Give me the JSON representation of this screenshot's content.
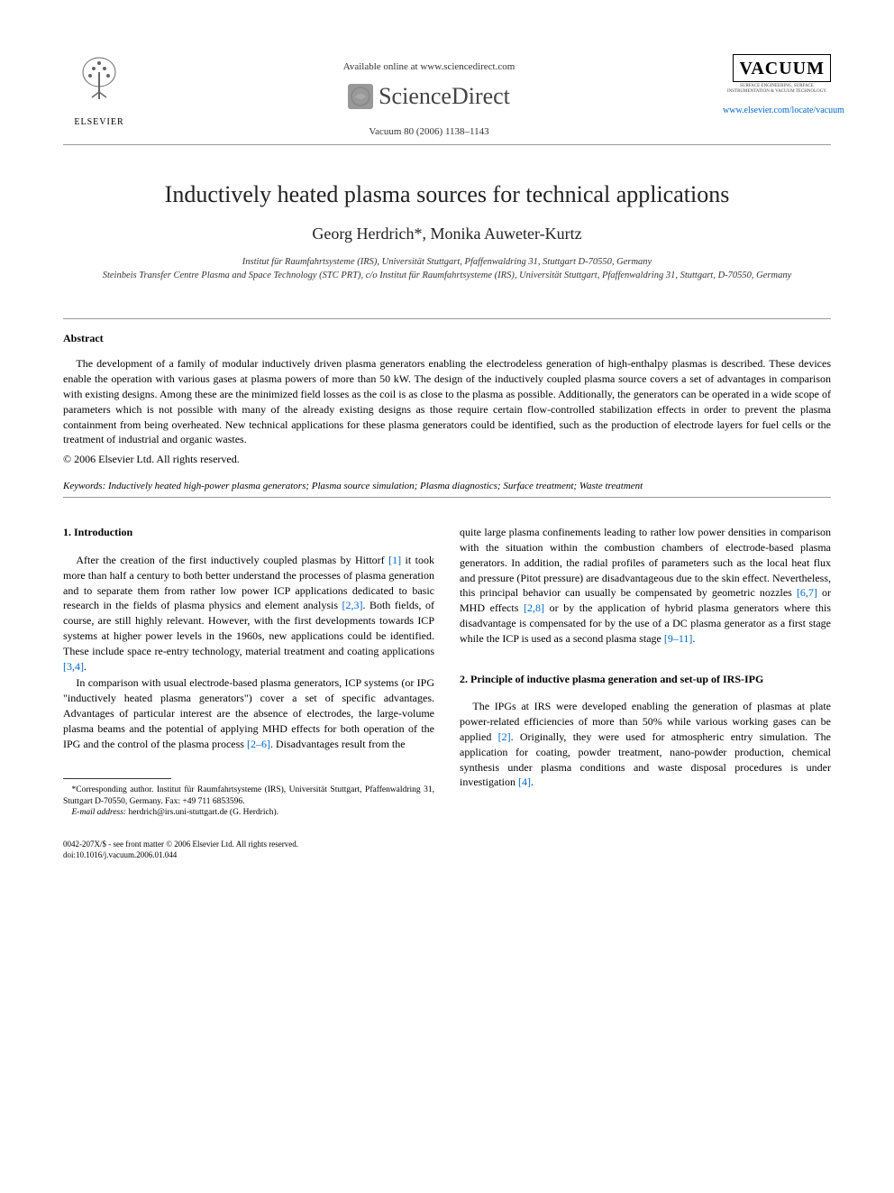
{
  "header": {
    "available_text": "Available online at www.sciencedirect.com",
    "sciencedirect_label": "ScienceDirect",
    "citation": "Vacuum 80 (2006) 1138–1143",
    "elsevier_label": "ELSEVIER",
    "journal_title": "VACUUM",
    "journal_subtitle": "SURFACE ENGINEERING, SURFACE INSTRUMENTATION & VACUUM TECHNOLOGY",
    "journal_link": "www.elsevier.com/locate/vacuum"
  },
  "article": {
    "title": "Inductively heated plasma sources for technical applications",
    "authors": "Georg Herdrich*, Monika Auweter-Kurtz",
    "affiliations": "Institut für Raumfahrtsysteme (IRS), Universität Stuttgart, Pfaffenwaldring 31, Stuttgart D-70550, Germany\nSteinbeis Transfer Centre Plasma and Space Technology (STC PRT), c/o Institut für Raumfahrtsysteme (IRS), Universität Stuttgart, Pfaffenwaldring 31, Stuttgart, D-70550, Germany"
  },
  "abstract": {
    "label": "Abstract",
    "text": "The development of a family of modular inductively driven plasma generators enabling the electrodeless generation of high-enthalpy plasmas is described. These devices enable the operation with various gases at plasma powers of more than 50 kW. The design of the inductively coupled plasma source covers a set of advantages in comparison with existing designs. Among these are the minimized field losses as the coil is as close to the plasma as possible. Additionally, the generators can be operated in a wide scope of parameters which is not possible with many of the already existing designs as those require certain flow-controlled stabilization effects in order to prevent the plasma containment from being overheated. New technical applications for these plasma generators could be identified, such as the production of electrode layers for fuel cells or the treatment of industrial and organic wastes.",
    "copyright": "© 2006 Elsevier Ltd. All rights reserved.",
    "keywords_label": "Keywords:",
    "keywords": "Inductively heated high-power plasma generators; Plasma source simulation; Plasma diagnostics; Surface treatment; Waste treatment"
  },
  "sections": {
    "intro_heading": "1. Introduction",
    "intro_p1_a": "After the creation of the first inductively coupled plasmas by Hittorf ",
    "intro_p1_ref1": "[1]",
    "intro_p1_b": " it took more than half a century to both better understand the processes of plasma generation and to separate them from rather low power ICP applications dedicated to basic research in the fields of plasma physics and element analysis ",
    "intro_p1_ref2": "[2,3]",
    "intro_p1_c": ". Both fields, of course, are still highly relevant. However, with the first developments towards ICP systems at higher power levels in the 1960s, new applications could be identified. These include space re-entry technology, material treatment and coating applications ",
    "intro_p1_ref3": "[3,4]",
    "intro_p1_d": ".",
    "intro_p2_a": "In comparison with usual electrode-based plasma generators, ICP systems (or IPG \"inductively heated plasma generators\") cover a set of specific advantages. Advantages of particular interest are the absence of electrodes, the large-volume plasma beams and the potential of applying MHD effects for both operation of the IPG and the control of the plasma process ",
    "intro_p2_ref1": "[2–6]",
    "intro_p2_b": ". Disadvantages result from the",
    "col2_p1_a": "quite large plasma confinements leading to rather low power densities in comparison with the situation within the combustion chambers of electrode-based plasma generators. In addition, the radial profiles of parameters such as the local heat flux and pressure (Pitot pressure) are disadvantageous due to the skin effect. Nevertheless, this principal behavior can usually be compensated by geometric nozzles ",
    "col2_p1_ref1": "[6,7]",
    "col2_p1_b": " or MHD effects ",
    "col2_p1_ref2": "[2,8]",
    "col2_p1_c": " or by the application of hybrid plasma generators where this disadvantage is compensated for by the use of a DC plasma generator as a first stage while the ICP is used as a second plasma stage ",
    "col2_p1_ref3": "[9–11]",
    "col2_p1_d": ".",
    "sec2_heading": "2. Principle of inductive plasma generation and set-up of IRS-IPG",
    "sec2_p1_a": "The IPGs at IRS were developed enabling the generation of plasmas at plate power-related efficiencies of more than 50% while various working gases can be applied ",
    "sec2_p1_ref1": "[2]",
    "sec2_p1_b": ". Originally, they were used for atmospheric entry simulation. The application for coating, powder treatment, nano-powder production, chemical synthesis under plasma conditions and waste disposal procedures is under investigation ",
    "sec2_p1_ref2": "[4]",
    "sec2_p1_c": "."
  },
  "footnote": {
    "corresponding": "*Corresponding author. Institut für Raumfahrtsysteme (IRS), Universität Stuttgart, Pfaffenwaldring 31, Stuttgart D-70550, Germany. Fax: +49 711 6853596.",
    "email_label": "E-mail address:",
    "email": "herdrich@irs.uni-stuttgart.de (G. Herdrich)."
  },
  "footer": {
    "line1": "0042-207X/$ - see front matter © 2006 Elsevier Ltd. All rights reserved.",
    "line2": "doi:10.1016/j.vacuum.2006.01.044"
  },
  "colors": {
    "link": "#0066cc",
    "text": "#000000",
    "background": "#ffffff"
  }
}
